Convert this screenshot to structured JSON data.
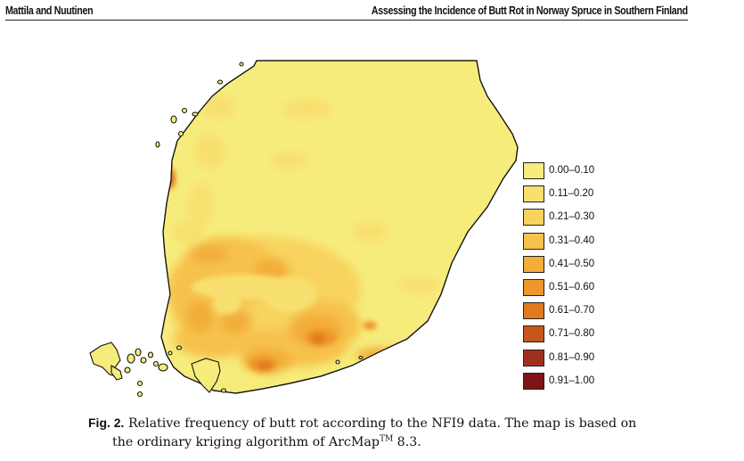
{
  "header": {
    "left": "Mattila and Nuutinen",
    "right": "Assessing the Incidence of Butt Rot in Norway Spruce in Southern Finland"
  },
  "legend": {
    "items": [
      {
        "label": "0.00–0.10",
        "color": "#f6ec7c"
      },
      {
        "label": "0.11–0.20",
        "color": "#f8e070"
      },
      {
        "label": "0.21–0.30",
        "color": "#f8d35e"
      },
      {
        "label": "0.31–0.40",
        "color": "#f6c24c"
      },
      {
        "label": "0.41–0.50",
        "color": "#f3ad3a"
      },
      {
        "label": "0.51–0.60",
        "color": "#ee982c"
      },
      {
        "label": "0.61–0.70",
        "color": "#e07a1e"
      },
      {
        "label": "0.71–0.80",
        "color": "#c6561c"
      },
      {
        "label": "0.81–0.90",
        "color": "#a0301e"
      },
      {
        "label": "0.91–1.00",
        "color": "#7d1418"
      }
    ]
  },
  "caption": {
    "label": "Fig. 2.",
    "text1": "Relative frequency of butt rot according to the NFI9 data. The map is based on",
    "text2_pre": "the ordinary kriging algorithm of ArcMap",
    "text2_sup": "TM",
    "text2_post": " 8.3."
  }
}
